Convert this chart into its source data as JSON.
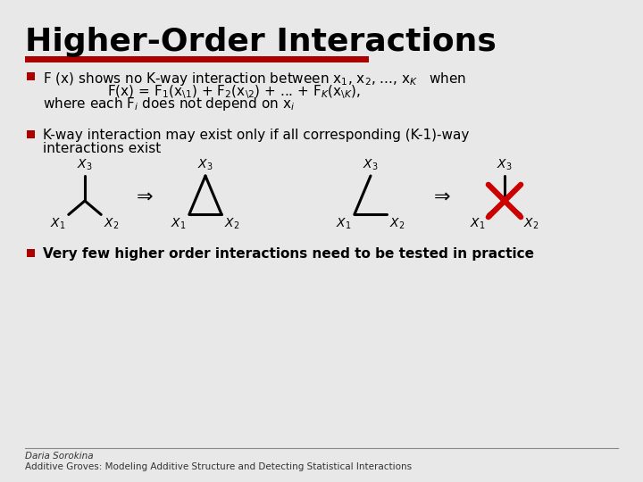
{
  "title": "Higher-Order Interactions",
  "background_color": "#e8e8e8",
  "title_color": "#000000",
  "title_fontsize": 26,
  "red_bar_color": "#aa0000",
  "bullet_color": "#aa0000",
  "text_color": "#000000",
  "footer_author": "Daria Sorokina",
  "footer_ref": "Additive Groves: Modeling Additive Structure and Detecting Statistical Interactions",
  "diagram_lw": 2.2,
  "cross_lw": 4.5,
  "cross_color": "#cc0000"
}
